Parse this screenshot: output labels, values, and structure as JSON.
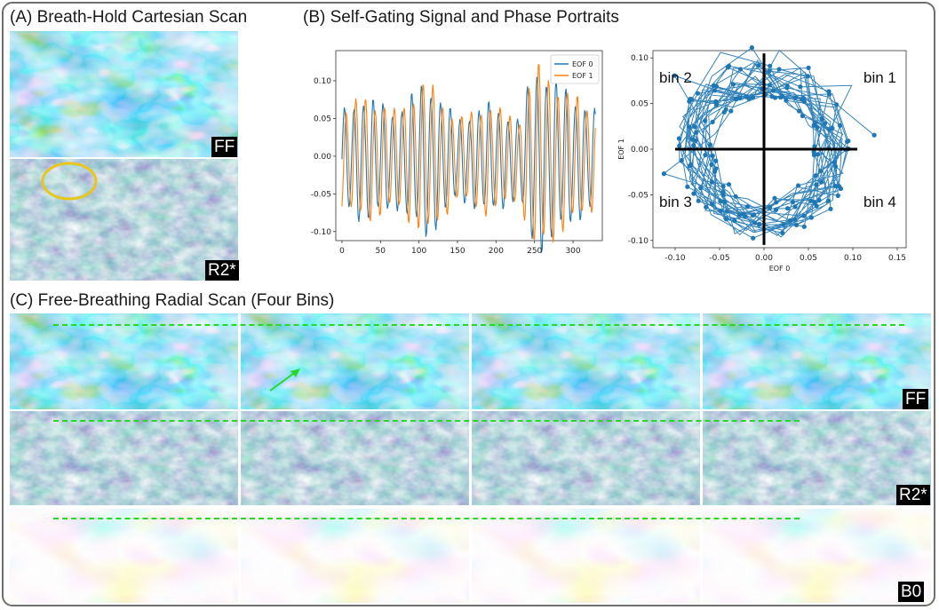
{
  "panel_a": {
    "title": "(A) Breath-Hold Cartesian Scan",
    "ff_label": "FF",
    "r2_label": "R2*"
  },
  "panel_b": {
    "title": "(B) Self-Gating Signal and Phase Portraits"
  },
  "panel_c": {
    "title": "(C) Free-Breathing Radial Scan (Four Bins)",
    "ff_label": "FF",
    "r2_label": "R2*",
    "b0_label": "B0"
  },
  "colors": {
    "eof0": "#1f77b4",
    "eof1": "#ff7f0e",
    "dash": "#2bd62b",
    "circle": "#e8c61a",
    "arrow": "#2bd62b"
  },
  "chart_data": [
    {
      "type": "line",
      "title": "",
      "xlabel": "",
      "ylabel": "",
      "xlim": [
        -8,
        338
      ],
      "ylim": [
        -0.112,
        0.14
      ],
      "xticks": [
        "0",
        "50",
        "100",
        "150",
        "200",
        "250",
        "300"
      ],
      "yticks": [
        "0.10",
        "0.05",
        "0.00",
        "-0.05",
        "-0.10"
      ],
      "series": [
        {
          "name": "EOF 0",
          "color": "#1f77b4"
        },
        {
          "name": "EOF 1",
          "color": "#ff7f0e"
        }
      ],
      "n_points": 330,
      "period": 12.5,
      "envelope": [
        [
          0,
          0.06
        ],
        [
          30,
          0.08
        ],
        [
          70,
          0.06
        ],
        [
          110,
          0.1
        ],
        [
          150,
          0.05
        ],
        [
          190,
          0.07
        ],
        [
          230,
          0.05
        ],
        [
          250,
          0.12
        ],
        [
          300,
          0.08
        ],
        [
          330,
          0.06
        ]
      ]
    },
    {
      "type": "scatter",
      "title": "",
      "xlabel": "EOF 0",
      "ylabel": "EOF 1",
      "xlim": [
        -0.125,
        0.16
      ],
      "ylim": [
        -0.108,
        0.108
      ],
      "xticks": [
        "-0.10",
        "-0.05",
        "0.00",
        "0.05",
        "0.10",
        "0.15"
      ],
      "yticks": [
        "0.10",
        "0.05",
        "0.00",
        "-0.05",
        "-0.10"
      ],
      "annotations": [
        "bin 1",
        "bin 2",
        "bin 3",
        "bin 4"
      ],
      "series": [
        {
          "name": "EOF 1 vs EOF 0",
          "color": "#1f77b4"
        }
      ]
    }
  ]
}
